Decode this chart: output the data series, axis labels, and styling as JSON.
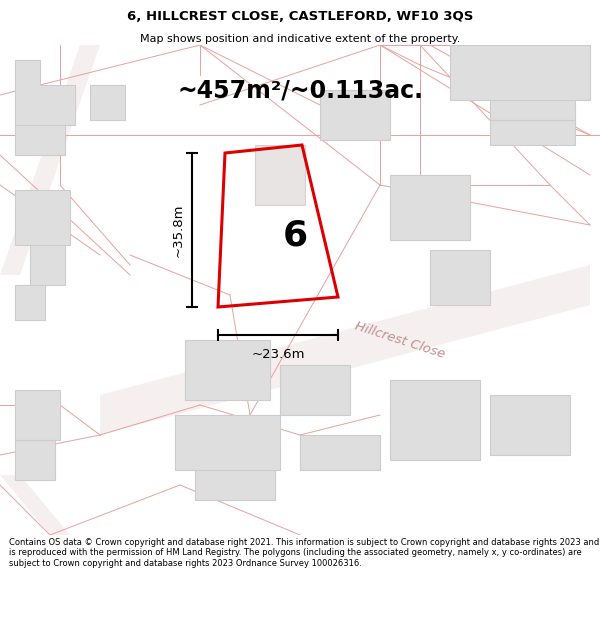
{
  "title_line1": "6, HILLCREST CLOSE, CASTLEFORD, WF10 3QS",
  "title_line2": "Map shows position and indicative extent of the property.",
  "area_text": "~457m²/~0.113ac.",
  "label_number": "6",
  "dim_vertical": "~35.8m",
  "dim_horizontal": "~23.6m",
  "street_label": "Hillcrest Close",
  "footer_text": "Contains OS data © Crown copyright and database right 2021. This information is subject to Crown copyright and database rights 2023 and is reproduced with the permission of HM Land Registry. The polygons (including the associated geometry, namely x, y co-ordinates) are subject to Crown copyright and database rights 2023 Ordnance Survey 100026316.",
  "bg_color": "#ffffff",
  "map_bg": "#ffffff",
  "plot_color": "#dd0000",
  "line_color": "#e8a0a0",
  "building_color": "#dedede",
  "building_edge": "#cccccc",
  "dim_line_color": "#000000"
}
